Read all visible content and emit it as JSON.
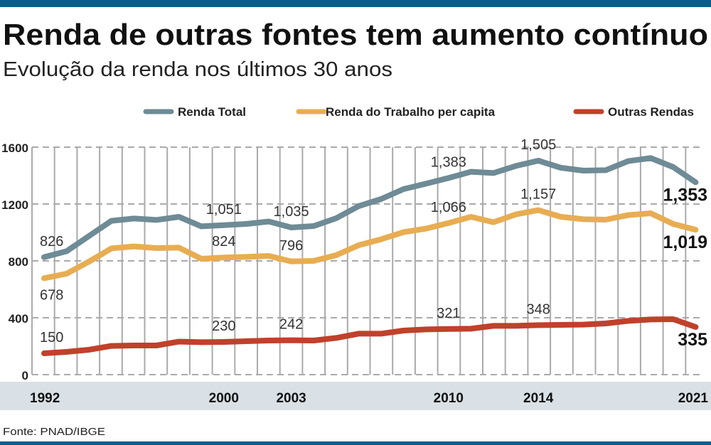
{
  "header": {
    "title": "Renda de outras fontes tem aumento contínuo",
    "subtitle": "Evolução da renda nos últimos 30 anos"
  },
  "source": "Fonte: PNAD/IBGE",
  "colors": {
    "accent_bar": "#05608a",
    "axis_band": "#d9e1e7",
    "grid": "#aaaaaa"
  },
  "chart_data": {
    "type": "line",
    "title": "Renda de outras fontes tem aumento contínuo",
    "subtitle": "Evolução da renda nos últimos 30 anos",
    "xlabel": "",
    "ylabel": "",
    "x": [
      1992,
      1993,
      1994,
      1995,
      1996,
      1997,
      1998,
      1999,
      2000,
      2001,
      2002,
      2003,
      2004,
      2005,
      2006,
      2007,
      2008,
      2009,
      2010,
      2011,
      2012,
      2013,
      2014,
      2015,
      2016,
      2017,
      2018,
      2019,
      2020,
      2021
    ],
    "xlim": [
      1992,
      2021
    ],
    "ylim": [
      0,
      1600
    ],
    "yticks": [
      0,
      400,
      800,
      1200,
      1600
    ],
    "xtick_labels": [
      "1992",
      "2000",
      "2003",
      "2010",
      "2014",
      "2021"
    ],
    "grid": true,
    "legend_placement": "top",
    "series": [
      {
        "name": "Renda Total",
        "color": "#6e8b96",
        "values": [
          826,
          868,
          975,
          1082,
          1098,
          1088,
          1110,
          1043,
          1051,
          1060,
          1077,
          1035,
          1045,
          1100,
          1185,
          1235,
          1305,
          1343,
          1383,
          1427,
          1418,
          1468,
          1505,
          1455,
          1435,
          1438,
          1502,
          1523,
          1460,
          1353
        ],
        "labels": [
          {
            "year": 1992,
            "text": "826",
            "pos": "above"
          },
          {
            "year": 2000,
            "text": "1,051",
            "pos": "above"
          },
          {
            "year": 2003,
            "text": "1,035",
            "pos": "above"
          },
          {
            "year": 2010,
            "text": "1,383",
            "pos": "above"
          },
          {
            "year": 2014,
            "text": "1,505",
            "pos": "above"
          },
          {
            "year": 2021,
            "text": "1,353",
            "pos": "final"
          }
        ]
      },
      {
        "name": "Renda do Trabalho per capita",
        "color": "#e8ad52",
        "values": [
          678,
          710,
          795,
          888,
          902,
          890,
          893,
          815,
          824,
          828,
          835,
          796,
          800,
          840,
          910,
          952,
          1002,
          1027,
          1066,
          1110,
          1072,
          1127,
          1157,
          1110,
          1093,
          1090,
          1122,
          1135,
          1060,
          1019
        ],
        "labels": [
          {
            "year": 1992,
            "text": "678",
            "pos": "below"
          },
          {
            "year": 2000,
            "text": "824",
            "pos": "above"
          },
          {
            "year": 2003,
            "text": "796",
            "pos": "above"
          },
          {
            "year": 2010,
            "text": "1,066",
            "pos": "above"
          },
          {
            "year": 2014,
            "text": "1,157",
            "pos": "above"
          },
          {
            "year": 2021,
            "text": "1,019",
            "pos": "final"
          }
        ]
      },
      {
        "name": "Outras Rendas",
        "color": "#c0412b",
        "values": [
          150,
          160,
          175,
          202,
          205,
          205,
          232,
          228,
          230,
          235,
          240,
          242,
          240,
          258,
          288,
          288,
          310,
          318,
          321,
          323,
          343,
          343,
          348,
          350,
          352,
          360,
          378,
          388,
          390,
          335
        ],
        "labels": [
          {
            "year": 1992,
            "text": "150",
            "pos": "above"
          },
          {
            "year": 2000,
            "text": "230",
            "pos": "above"
          },
          {
            "year": 2003,
            "text": "242",
            "pos": "above"
          },
          {
            "year": 2010,
            "text": "321",
            "pos": "above"
          },
          {
            "year": 2014,
            "text": "348",
            "pos": "above"
          },
          {
            "year": 2021,
            "text": "335",
            "pos": "final"
          }
        ]
      }
    ]
  }
}
